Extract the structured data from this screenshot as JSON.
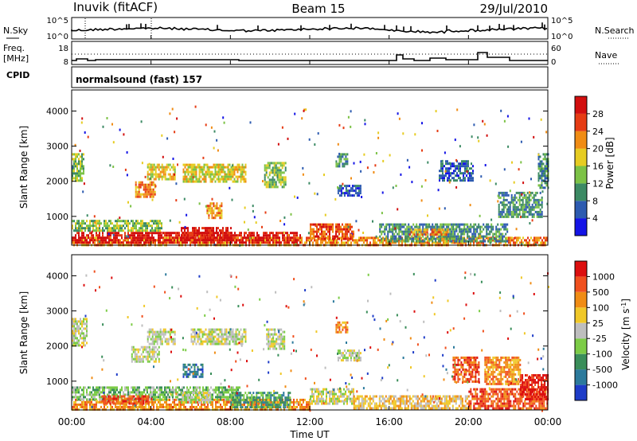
{
  "header": {
    "station": "Inuvik (fitACF)",
    "beam": "Beam 15",
    "date": "29/Jul/2010"
  },
  "noise_panel": {
    "left_label": "N.Sky",
    "right_label": "N.Search",
    "left_ticks": [
      "10^5",
      "10^0"
    ],
    "right_ticks": [
      "10^5",
      "10^0"
    ]
  },
  "freq_panel": {
    "left_label_line1": "Freq.",
    "left_label_line2": "[MHz]",
    "right_label": "Nave",
    "left_ticks": [
      "18",
      "8"
    ],
    "right_ticks": [
      "60",
      "0"
    ]
  },
  "cpid_panel": {
    "label": "CPID",
    "text": "normalsound (fast) 157"
  },
  "xaxis": {
    "label": "Time UT",
    "ticks": [
      "00:00",
      "04:00",
      "08:00",
      "12:00",
      "16:00",
      "20:00",
      "00:00"
    ]
  },
  "chart_data": [
    {
      "type": "heatmap",
      "title": "Power",
      "ylabel": "Slant Range [km]",
      "yticks": [
        "1000",
        "2000",
        "3000",
        "4000"
      ],
      "ylim": [
        180,
        4600
      ],
      "xlim": [
        0,
        24
      ],
      "colorbar": {
        "label": "Power [dB]",
        "ticks": [
          "4",
          "8",
          "12",
          "16",
          "20",
          "24",
          "28"
        ],
        "colors": [
          "#1414e6",
          "#2d5bb0",
          "#3c8a64",
          "#7cc246",
          "#e6cc22",
          "#f08c14",
          "#e63c14",
          "#d20f0f"
        ]
      },
      "regions": [
        {
          "t0": 0.0,
          "t1": 24.0,
          "r0": 200,
          "r1": 420,
          "level": 5
        },
        {
          "t0": 0.0,
          "t1": 11.5,
          "r0": 250,
          "r1": 560,
          "level": 7
        },
        {
          "t0": 5.5,
          "t1": 8.0,
          "r0": 300,
          "r1": 700,
          "level": 7
        },
        {
          "t0": 12.0,
          "t1": 14.2,
          "r0": 380,
          "r1": 800,
          "level": 6
        },
        {
          "t0": 0.0,
          "t1": 4.5,
          "r0": 560,
          "r1": 900,
          "level": 3
        },
        {
          "t0": 15.5,
          "t1": 22.0,
          "r0": 300,
          "r1": 800,
          "level": 2
        },
        {
          "t0": 17.0,
          "t1": 19.0,
          "r0": 450,
          "r1": 650,
          "level": 5
        },
        {
          "t0": 3.2,
          "t1": 4.2,
          "r0": 1550,
          "r1": 2000,
          "level": 5
        },
        {
          "t0": 3.8,
          "t1": 5.2,
          "r0": 2050,
          "r1": 2500,
          "level": 4
        },
        {
          "t0": 5.6,
          "t1": 8.8,
          "r0": 2000,
          "r1": 2500,
          "level": 4
        },
        {
          "t0": 9.7,
          "t1": 10.8,
          "r0": 1850,
          "r1": 2550,
          "level": 3
        },
        {
          "t0": 13.4,
          "t1": 14.6,
          "r0": 1600,
          "r1": 1900,
          "level": 1
        },
        {
          "t0": 18.5,
          "t1": 20.2,
          "r0": 2000,
          "r1": 2600,
          "level": 1
        },
        {
          "t0": 21.5,
          "t1": 23.7,
          "r0": 1000,
          "r1": 1700,
          "level": 2
        },
        {
          "t0": 6.8,
          "t1": 7.6,
          "r0": 950,
          "r1": 1400,
          "level": 5
        },
        {
          "t0": 0.0,
          "t1": 0.6,
          "r0": 2000,
          "r1": 2800,
          "level": 3
        },
        {
          "t0": 23.5,
          "t1": 24.0,
          "r0": 1800,
          "r1": 2800,
          "level": 2
        },
        {
          "t0": 13.3,
          "t1": 13.9,
          "r0": 2400,
          "r1": 2800,
          "level": 2
        }
      ]
    },
    {
      "type": "heatmap",
      "title": "Velocity",
      "ylabel": "Slant Range [km]",
      "yticks": [
        "1000",
        "2000",
        "3000",
        "4000"
      ],
      "ylim": [
        180,
        4600
      ],
      "xlim": [
        0,
        24
      ],
      "colorbar": {
        "label": "Velocity [m s^-1]",
        "ticks": [
          "1000",
          "500",
          "100",
          "25",
          "-25",
          "-100",
          "-500",
          "-1000"
        ],
        "colors": [
          "#1e3cc8",
          "#2c7a9c",
          "#3a8e5a",
          "#7ccc46",
          "#bebebe",
          "#f0c828",
          "#f08c14",
          "#f0501e",
          "#dc0f0f"
        ]
      },
      "regions": [
        {
          "t0": 0.0,
          "t1": 12.0,
          "r0": 200,
          "r1": 500,
          "level": 6
        },
        {
          "t0": 0.0,
          "t1": 8.5,
          "r0": 450,
          "r1": 850,
          "level": 3
        },
        {
          "t0": 1.5,
          "t1": 4.0,
          "r0": 350,
          "r1": 600,
          "level": 7
        },
        {
          "t0": 5.5,
          "t1": 7.0,
          "r0": 400,
          "r1": 700,
          "level": 4
        },
        {
          "t0": 8.0,
          "t1": 11.0,
          "r0": 250,
          "r1": 700,
          "level": 2
        },
        {
          "t0": 12.0,
          "t1": 14.2,
          "r0": 350,
          "r1": 800,
          "level": 4
        },
        {
          "t0": 14.2,
          "t1": 20.0,
          "r0": 250,
          "r1": 600,
          "level": 5
        },
        {
          "t0": 20.0,
          "t1": 24.0,
          "r0": 200,
          "r1": 800,
          "level": 7
        },
        {
          "t0": 5.6,
          "t1": 6.6,
          "r0": 1100,
          "r1": 1500,
          "level": 1
        },
        {
          "t0": 3.0,
          "t1": 4.4,
          "r0": 1550,
          "r1": 2000,
          "level": 4
        },
        {
          "t0": 0.0,
          "t1": 0.8,
          "r0": 2000,
          "r1": 2800,
          "level": 4
        },
        {
          "t0": 3.8,
          "t1": 5.2,
          "r0": 2050,
          "r1": 2500,
          "level": 4
        },
        {
          "t0": 6.0,
          "t1": 8.8,
          "r0": 2050,
          "r1": 2500,
          "level": 4
        },
        {
          "t0": 9.8,
          "t1": 10.7,
          "r0": 1900,
          "r1": 2500,
          "level": 4
        },
        {
          "t0": 13.3,
          "t1": 13.9,
          "r0": 2400,
          "r1": 2700,
          "level": 6
        },
        {
          "t0": 13.4,
          "t1": 14.6,
          "r0": 1600,
          "r1": 1900,
          "level": 4
        },
        {
          "t0": 19.2,
          "t1": 20.5,
          "r0": 1000,
          "r1": 1700,
          "level": 7
        },
        {
          "t0": 20.8,
          "t1": 22.6,
          "r0": 900,
          "r1": 1700,
          "level": 6
        },
        {
          "t0": 22.6,
          "t1": 24.0,
          "r0": 500,
          "r1": 1200,
          "level": 8
        }
      ]
    }
  ]
}
